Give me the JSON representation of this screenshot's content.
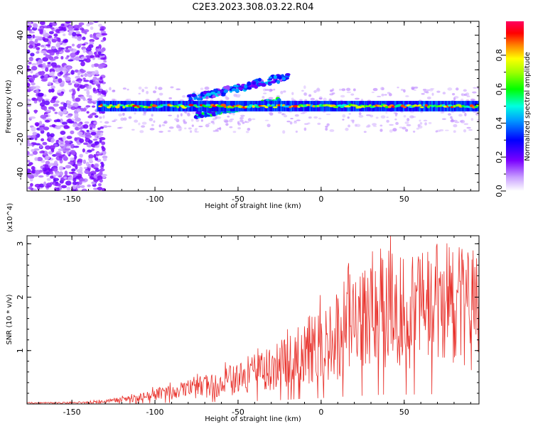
{
  "title": "C2E3.2023.308.03.22.R04",
  "chart_data": [
    {
      "type": "heatmap",
      "title": "",
      "xlabel": "Height of straight line (km)",
      "ylabel": "Frequency (Hz)",
      "xlim": [
        -177,
        95
      ],
      "ylim": [
        -50,
        48
      ],
      "xticks": [
        -150,
        -100,
        -50,
        0,
        50
      ],
      "yticks": [
        -40,
        -20,
        0,
        20,
        40
      ],
      "colorbar": {
        "label": "Normalized spectral amplitude",
        "range": [
          0.0,
          1.0
        ],
        "ticks": [
          0.0,
          0.2,
          0.4,
          0.6,
          0.8
        ]
      },
      "features": [
        {
          "name": "scattered noise region",
          "x_range": [
            -177,
            -130
          ],
          "freq_range": [
            -50,
            48
          ]
        },
        {
          "name": "main band",
          "x_range": [
            -135,
            95
          ],
          "freq_center": -1,
          "freq_halfwidth": 3
        },
        {
          "name": "upper branch",
          "x_range": [
            -80,
            -20
          ],
          "freq_range": [
            3,
            18
          ]
        },
        {
          "name": "lower branch",
          "x_range": [
            -75,
            -25
          ],
          "freq_range": [
            -6,
            2
          ]
        }
      ]
    },
    {
      "type": "line",
      "title": "",
      "xlabel": "Height of straight line (km)",
      "ylabel": "SNR (10 * v/v)",
      "y_multiplier": "(x10^4)",
      "xlim": [
        -177,
        95
      ],
      "ylim": [
        0,
        3.15
      ],
      "xticks": [
        -150,
        -100,
        -50,
        0,
        50
      ],
      "yticks": [
        1,
        2,
        3
      ],
      "series": [
        {
          "name": "SNR",
          "color": "#e8302a",
          "x": [
            -177,
            -160,
            -140,
            -130,
            -120,
            -110,
            -100,
            -90,
            -80,
            -70,
            -60,
            -50,
            -40,
            -30,
            -20,
            -10,
            0,
            10,
            20,
            30,
            40,
            50,
            60,
            70,
            80,
            90,
            95
          ],
          "y": [
            0.02,
            0.02,
            0.03,
            0.05,
            0.08,
            0.12,
            0.18,
            0.22,
            0.28,
            0.33,
            0.4,
            0.48,
            0.55,
            0.65,
            0.8,
            1.0,
            1.1,
            1.3,
            1.5,
            1.6,
            1.8,
            1.75,
            1.8,
            1.85,
            1.8,
            1.75,
            1.8
          ]
        }
      ]
    }
  ],
  "colors": {
    "line": "#e8302a",
    "axis": "#000000"
  }
}
